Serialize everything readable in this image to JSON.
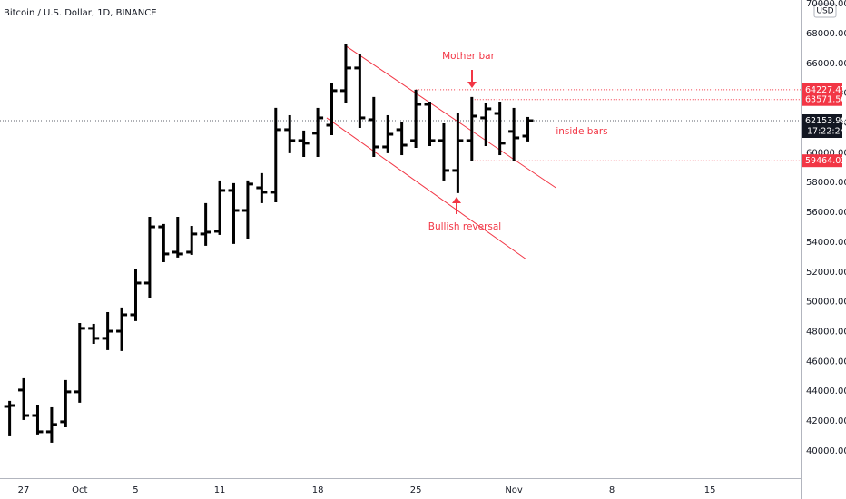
{
  "chart_data": {
    "type": "ohlc",
    "title": "Bitcoin / U.S. Dollar, 1D, BINANCE",
    "currency": "USD",
    "categories": [
      null,
      "27",
      null,
      null,
      null,
      "Oct",
      null,
      null,
      null,
      "5",
      null,
      null,
      null,
      null,
      null,
      "11",
      null,
      null,
      null,
      null,
      null,
      null,
      "18",
      null,
      null,
      null,
      null,
      null,
      null,
      "25",
      null,
      null,
      null,
      null,
      null,
      null,
      "Nov",
      null,
      null,
      null,
      null,
      null,
      null,
      "8",
      null,
      null,
      null,
      null,
      null,
      null,
      "15",
      null,
      null,
      null,
      null,
      null,
      null
    ],
    "series": {
      "name": "BTCUSD",
      "color": "#000000",
      "open": [
        42980,
        44080,
        42370,
        41280,
        41950,
        43960,
        48220,
        47550,
        48030,
        49130,
        51260,
        55030,
        53330,
        53330,
        54550,
        54730,
        57470,
        56130,
        57650,
        57350,
        61550,
        60820,
        61310,
        61850,
        64170,
        65690,
        62220,
        60390,
        61550,
        60820,
        63250,
        60820,
        58810,
        60820,
        62340,
        62640,
        61430,
        61120,
        null,
        null,
        null,
        null,
        null,
        null,
        null,
        null,
        null,
        null,
        null,
        null,
        null,
        null,
        null,
        null,
        null,
        null,
        null
      ],
      "high": [
        43290,
        44810,
        43040,
        42860,
        44690,
        48520,
        48460,
        49250,
        49560,
        52110,
        55640,
        55160,
        55640,
        55030,
        56560,
        58080,
        57900,
        58080,
        58570,
        62950,
        62460,
        61430,
        62950,
        64650,
        67210,
        66600,
        63680,
        62460,
        62030,
        64170,
        63370,
        61910,
        62640,
        63680,
        63250,
        63370,
        62950,
        62340,
        null,
        null,
        null,
        null,
        null,
        null,
        null,
        null,
        null,
        null,
        null,
        null,
        null,
        null,
        null,
        null,
        null,
        null,
        null
      ],
      "low": [
        41035,
        42130,
        41160,
        40610,
        41640,
        43290,
        47240,
        46820,
        46760,
        48770,
        50290,
        52720,
        53030,
        53210,
        53820,
        54550,
        53940,
        54300,
        56680,
        56740,
        60030,
        59780,
        59780,
        61240,
        63430,
        61730,
        59780,
        60030,
        59900,
        60390,
        60510,
        58200,
        57350,
        59480,
        60510,
        59900,
        59480,
        60820,
        null,
        null,
        null,
        null,
        null,
        null,
        null,
        null,
        null,
        null,
        null,
        null,
        null,
        null,
        null,
        null,
        null,
        null,
        null
      ],
      "close": [
        43040,
        42370,
        41280,
        41770,
        43960,
        48220,
        47550,
        48030,
        49130,
        51260,
        55030,
        53210,
        53210,
        54550,
        54670,
        57470,
        56130,
        57900,
        57350,
        61550,
        60820,
        60640,
        62340,
        64170,
        65690,
        62340,
        60390,
        61240,
        60510,
        63250,
        60820,
        58810,
        60820,
        62460,
        62950,
        60640,
        61000,
        62153.98,
        null,
        null,
        null,
        null,
        null,
        null,
        null,
        null,
        null,
        null,
        null,
        null,
        null,
        null,
        null,
        null,
        null,
        null,
        null
      ]
    },
    "ylim": [
      38170,
      70250
    ],
    "yticks": [
      {
        "value": 40000,
        "label": "40000.00"
      },
      {
        "value": 42000,
        "label": "42000.00"
      },
      {
        "value": 44000,
        "label": "44000.00"
      },
      {
        "value": 46000,
        "label": "46000.00"
      },
      {
        "value": 48000,
        "label": "48000.00"
      },
      {
        "value": 50000,
        "label": "50000.00"
      },
      {
        "value": 52000,
        "label": "52000.00"
      },
      {
        "value": 54000,
        "label": "54000.00"
      },
      {
        "value": 56000,
        "label": "56000.00"
      },
      {
        "value": 58000,
        "label": "58000.00"
      },
      {
        "value": 60000,
        "label": "60000.00"
      },
      {
        "value": 62000,
        "label": "62000.00"
      },
      {
        "value": 64000,
        "label": "64000.00"
      },
      {
        "value": 66000,
        "label": "66000.00"
      },
      {
        "value": 68000,
        "label": "68000.00"
      },
      {
        "value": 70000,
        "label": "70000.00"
      }
    ],
    "grid": false,
    "price_levels": [
      {
        "value": 64227.47,
        "from": 29,
        "color": "#f23645"
      },
      {
        "value": 63571.56,
        "from": 33,
        "color": "#f23645"
      },
      {
        "value": 59464.03,
        "from": 33,
        "color": "#f23645"
      }
    ],
    "last_price": {
      "value": 62153.98,
      "countdown": "17:22:24",
      "color": "#131722"
    },
    "trend_lines": [
      {
        "color": "#f23645",
        "x": [
          23.94,
          39
        ],
        "y": [
          67210,
          57650
        ]
      },
      {
        "color": "#f23645",
        "x": [
          22.64,
          36.9
        ],
        "y": [
          62340,
          52840
        ]
      }
    ],
    "annotations": [
      {
        "text": "Mother bar",
        "color": "#f23645"
      },
      {
        "text": "Bullish reversal",
        "color": "#f23645"
      },
      {
        "text": "inside bars",
        "color": "#f23645"
      }
    ]
  }
}
